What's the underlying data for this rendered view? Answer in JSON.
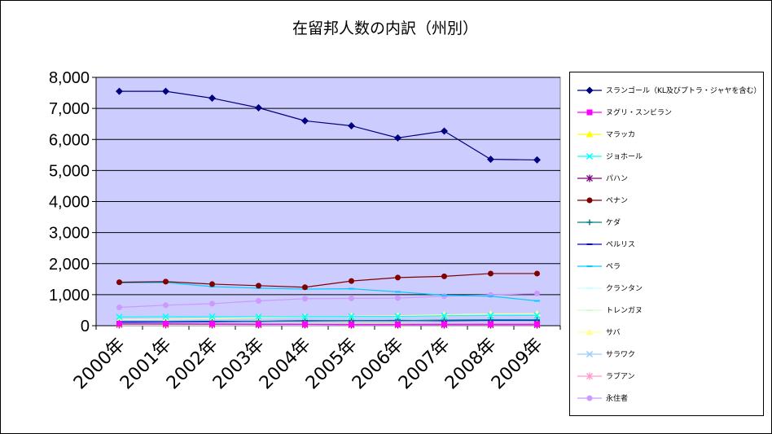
{
  "chart_data": {
    "type": "line",
    "title": "在留邦人数の内訳（州別）",
    "categories": [
      "2000年",
      "2001年",
      "2002年",
      "2003年",
      "2004年",
      "2005年",
      "2006年",
      "2007年",
      "2008年",
      "2009年"
    ],
    "ylim": [
      0,
      8000
    ],
    "yticks": [
      "0",
      "1,000",
      "2,000",
      "3,000",
      "4,000",
      "5,000",
      "6,000",
      "7,000",
      "8,000"
    ],
    "grid": true,
    "legend": "right",
    "plot_background": "#ccccff",
    "series": [
      {
        "name": "スランゴール（KL及びプトラ・ジャヤを含む）",
        "color": "#000080",
        "marker": "diamond",
        "values": [
          7550,
          7550,
          7330,
          7020,
          6600,
          6440,
          6050,
          6270,
          5360,
          5340
        ]
      },
      {
        "name": "ヌグリ・スンビラン",
        "color": "#ff00ff",
        "marker": "square",
        "values": [
          60,
          60,
          55,
          50,
          45,
          40,
          40,
          45,
          45,
          45
        ]
      },
      {
        "name": "マラッカ",
        "color": "#ffff00",
        "marker": "triangle",
        "values": [
          50,
          50,
          50,
          50,
          50,
          50,
          50,
          50,
          50,
          50
        ]
      },
      {
        "name": "ジョホール",
        "color": "#00ffff",
        "marker": "x",
        "values": [
          280,
          290,
          290,
          290,
          290,
          300,
          300,
          320,
          330,
          330
        ]
      },
      {
        "name": "パハン",
        "color": "#800080",
        "marker": "star",
        "values": [
          40,
          40,
          40,
          35,
          35,
          30,
          30,
          30,
          30,
          30
        ]
      },
      {
        "name": "ペナン",
        "color": "#800000",
        "marker": "circle",
        "values": [
          1400,
          1420,
          1340,
          1290,
          1240,
          1440,
          1550,
          1590,
          1680,
          1680
        ]
      },
      {
        "name": "ケダ",
        "color": "#008080",
        "marker": "plus",
        "values": [
          100,
          110,
          120,
          140,
          150,
          160,
          160,
          180,
          190,
          190
        ]
      },
      {
        "name": "ペルリス",
        "color": "#0000ff",
        "marker": "dash",
        "values": [
          130,
          130,
          140,
          140,
          160,
          160,
          170,
          160,
          170,
          170
        ]
      },
      {
        "name": "ペラ",
        "color": "#00ccff",
        "marker": "dash",
        "values": [
          1380,
          1390,
          1260,
          1210,
          1180,
          1190,
          1090,
          980,
          950,
          800
        ]
      },
      {
        "name": "クランタン",
        "color": "#ccffff",
        "marker": "dash",
        "values": [
          10,
          10,
          10,
          10,
          10,
          10,
          10,
          10,
          10,
          10
        ]
      },
      {
        "name": "トレンガヌ",
        "color": "#ccffcc",
        "marker": "dash",
        "values": [
          20,
          20,
          20,
          20,
          20,
          20,
          20,
          20,
          20,
          20
        ]
      },
      {
        "name": "サバ",
        "color": "#ffff99",
        "marker": "triangle",
        "values": [
          200,
          210,
          230,
          260,
          280,
          310,
          320,
          350,
          380,
          390
        ]
      },
      {
        "name": "サラワク",
        "color": "#99ccff",
        "marker": "x",
        "values": [
          150,
          150,
          150,
          160,
          160,
          170,
          170,
          180,
          190,
          190
        ]
      },
      {
        "name": "ラブアン",
        "color": "#ff99cc",
        "marker": "star",
        "values": [
          20,
          20,
          20,
          20,
          20,
          20,
          20,
          20,
          20,
          20
        ]
      },
      {
        "name": "永住者",
        "color": "#cc99ff",
        "marker": "circle",
        "values": [
          590,
          660,
          710,
          800,
          870,
          880,
          890,
          950,
          990,
          1040
        ]
      }
    ]
  }
}
